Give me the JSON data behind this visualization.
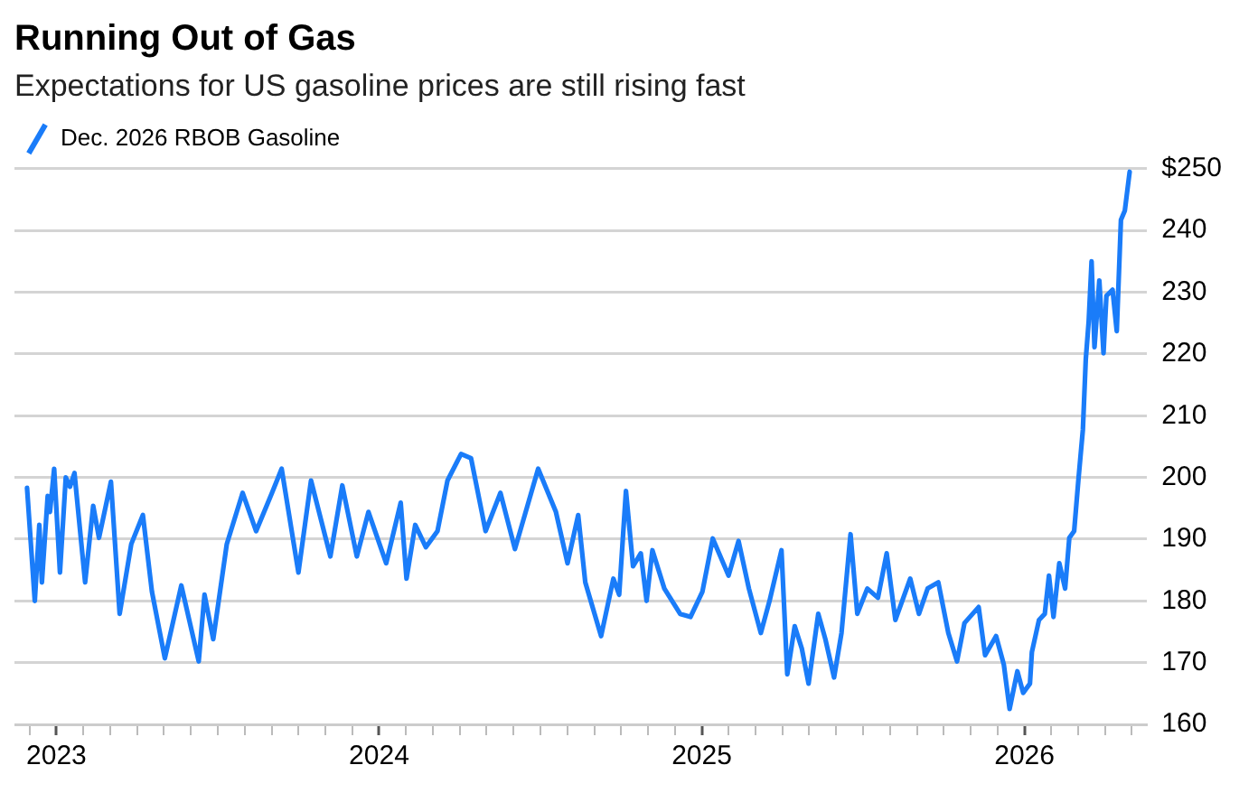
{
  "chart_data": {
    "type": "line",
    "title": "Running Out of Gas",
    "subtitle": "Expectations for US gasoline prices are still rising fast",
    "legend": "top left",
    "grid": "y",
    "marker": "none",
    "line_style": "solid",
    "xlim": [
      2022.87,
      2026.38
    ],
    "xticks": [
      {
        "value": 2022.917,
        "label": null
      },
      2023,
      {
        "value": 2023.083,
        "label": null
      },
      {
        "value": 2023.167,
        "label": null
      },
      {
        "value": 2023.25,
        "label": null
      },
      {
        "value": 2023.333,
        "label": null
      },
      {
        "value": 2023.417,
        "label": null
      },
      {
        "value": 2023.5,
        "label": null
      },
      {
        "value": 2023.583,
        "label": null
      },
      {
        "value": 2023.667,
        "label": null
      },
      {
        "value": 2023.75,
        "label": null
      },
      {
        "value": 2023.833,
        "label": null
      },
      {
        "value": 2023.917,
        "label": null
      },
      2024,
      {
        "value": 2024.083,
        "label": null
      },
      {
        "value": 2024.167,
        "label": null
      },
      {
        "value": 2024.25,
        "label": null
      },
      {
        "value": 2024.333,
        "label": null
      },
      {
        "value": 2024.417,
        "label": null
      },
      {
        "value": 2024.5,
        "label": null
      },
      {
        "value": 2024.583,
        "label": null
      },
      {
        "value": 2024.667,
        "label": null
      },
      {
        "value": 2024.75,
        "label": null
      },
      {
        "value": 2024.833,
        "label": null
      },
      {
        "value": 2024.917,
        "label": null
      },
      2025,
      {
        "value": 2025.083,
        "label": null
      },
      {
        "value": 2025.167,
        "label": null
      },
      {
        "value": 2025.25,
        "label": null
      },
      {
        "value": 2025.333,
        "label": null
      },
      {
        "value": 2025.417,
        "label": null
      },
      {
        "value": 2025.5,
        "label": null
      },
      {
        "value": 2025.583,
        "label": null
      },
      {
        "value": 2025.667,
        "label": null
      },
      {
        "value": 2025.75,
        "label": null
      },
      {
        "value": 2025.833,
        "label": null
      },
      {
        "value": 2025.917,
        "label": null
      },
      2026,
      {
        "value": 2026.083,
        "label": null
      },
      {
        "value": 2026.167,
        "label": null
      },
      {
        "value": 2026.25,
        "label": null
      },
      {
        "value": 2026.333,
        "label": null
      }
    ],
    "ylim": [
      160,
      250
    ],
    "yticks": [
      160,
      170,
      180,
      190,
      200,
      210,
      220,
      230,
      240,
      {
        "value": 250,
        "label": "$250"
      }
    ],
    "x": [
      2022.909,
      2022.933,
      2022.947,
      2022.955,
      2022.973,
      2022.98,
      2022.993,
      2023.011,
      2023.029,
      2023.042,
      2023.056,
      2023.089,
      2023.114,
      2023.132,
      2023.169,
      2023.196,
      2023.232,
      2023.268,
      2023.296,
      2023.336,
      2023.387,
      2023.441,
      2023.459,
      2023.486,
      2023.528,
      2023.577,
      2023.619,
      2023.668,
      2023.698,
      2023.75,
      2023.789,
      2023.849,
      2023.886,
      2023.931,
      2023.967,
      2024.022,
      2024.067,
      2024.085,
      2024.112,
      2024.145,
      2024.181,
      2024.212,
      2024.254,
      2024.285,
      2024.33,
      2024.376,
      2024.421,
      2024.493,
      2024.548,
      2024.584,
      2024.617,
      2024.639,
      2024.688,
      2024.726,
      2024.744,
      2024.765,
      2024.787,
      2024.811,
      2024.829,
      2024.847,
      2024.884,
      2024.933,
      2024.965,
      2025.002,
      2025.034,
      2025.083,
      2025.114,
      2025.146,
      2025.183,
      2025.21,
      2025.247,
      2025.265,
      2025.288,
      2025.31,
      2025.331,
      2025.361,
      2025.383,
      2025.41,
      2025.433,
      2025.461,
      2025.482,
      2025.513,
      2025.546,
      2025.573,
      2025.6,
      2025.646,
      2025.673,
      2025.7,
      2025.733,
      2025.764,
      2025.791,
      2025.814,
      2025.858,
      2025.878,
      2025.912,
      2025.936,
      2025.954,
      2025.978,
      2025.996,
      2026.017,
      2026.023,
      2026.045,
      2026.063,
      2026.076,
      2026.09,
      2026.108,
      2026.126,
      2026.139,
      2026.154,
      2026.167,
      2026.181,
      2026.19,
      2026.199,
      2026.208,
      2026.217,
      2026.232,
      2026.245,
      2026.254,
      2026.273,
      2026.286,
      2026.299,
      2026.311,
      2026.326
    ],
    "series": [
      {
        "name": "Dec. 2026 RBOB Gasoline",
        "color": "#1a7cf9",
        "values": [
          198.3,
          180,
          192.3,
          183,
          197,
          194.4,
          201.4,
          184.6,
          200,
          198.5,
          200.7,
          183,
          195.4,
          190.2,
          199.3,
          177.9,
          189.2,
          193.9,
          181.5,
          170.7,
          182.5,
          170.2,
          181,
          173.8,
          189.2,
          197.5,
          191.3,
          197.5,
          201.4,
          184.6,
          199.5,
          187.2,
          198.7,
          187.2,
          194.4,
          186.1,
          195.9,
          183.6,
          192.3,
          188.7,
          191.3,
          199.5,
          203.8,
          203.1,
          191.3,
          197.5,
          188.4,
          201.4,
          194.4,
          186.1,
          193.9,
          183,
          174.3,
          183.6,
          181,
          197.8,
          185.6,
          187.7,
          180,
          188.2,
          182,
          177.9,
          177.4,
          181.5,
          190.1,
          184.1,
          189.7,
          182,
          174.8,
          180,
          188.2,
          168.1,
          175.9,
          172.3,
          166.6,
          177.9,
          173.8,
          167.6,
          174.8,
          190.8,
          177.9,
          182,
          180.5,
          187.7,
          176.9,
          183.6,
          177.9,
          182,
          183,
          174.8,
          170.2,
          176.4,
          179,
          171.2,
          174.3,
          169.7,
          162.5,
          168.6,
          165.1,
          166.6,
          171.7,
          176.9,
          177.9,
          184.1,
          177.4,
          186.1,
          182,
          190.2,
          191.3,
          199.5,
          207.7,
          219.1,
          225.2,
          235,
          221.1,
          231.9,
          220.1,
          229.4,
          230.4,
          223.7,
          241.7,
          243.2,
          249.5
        ]
      }
    ]
  }
}
